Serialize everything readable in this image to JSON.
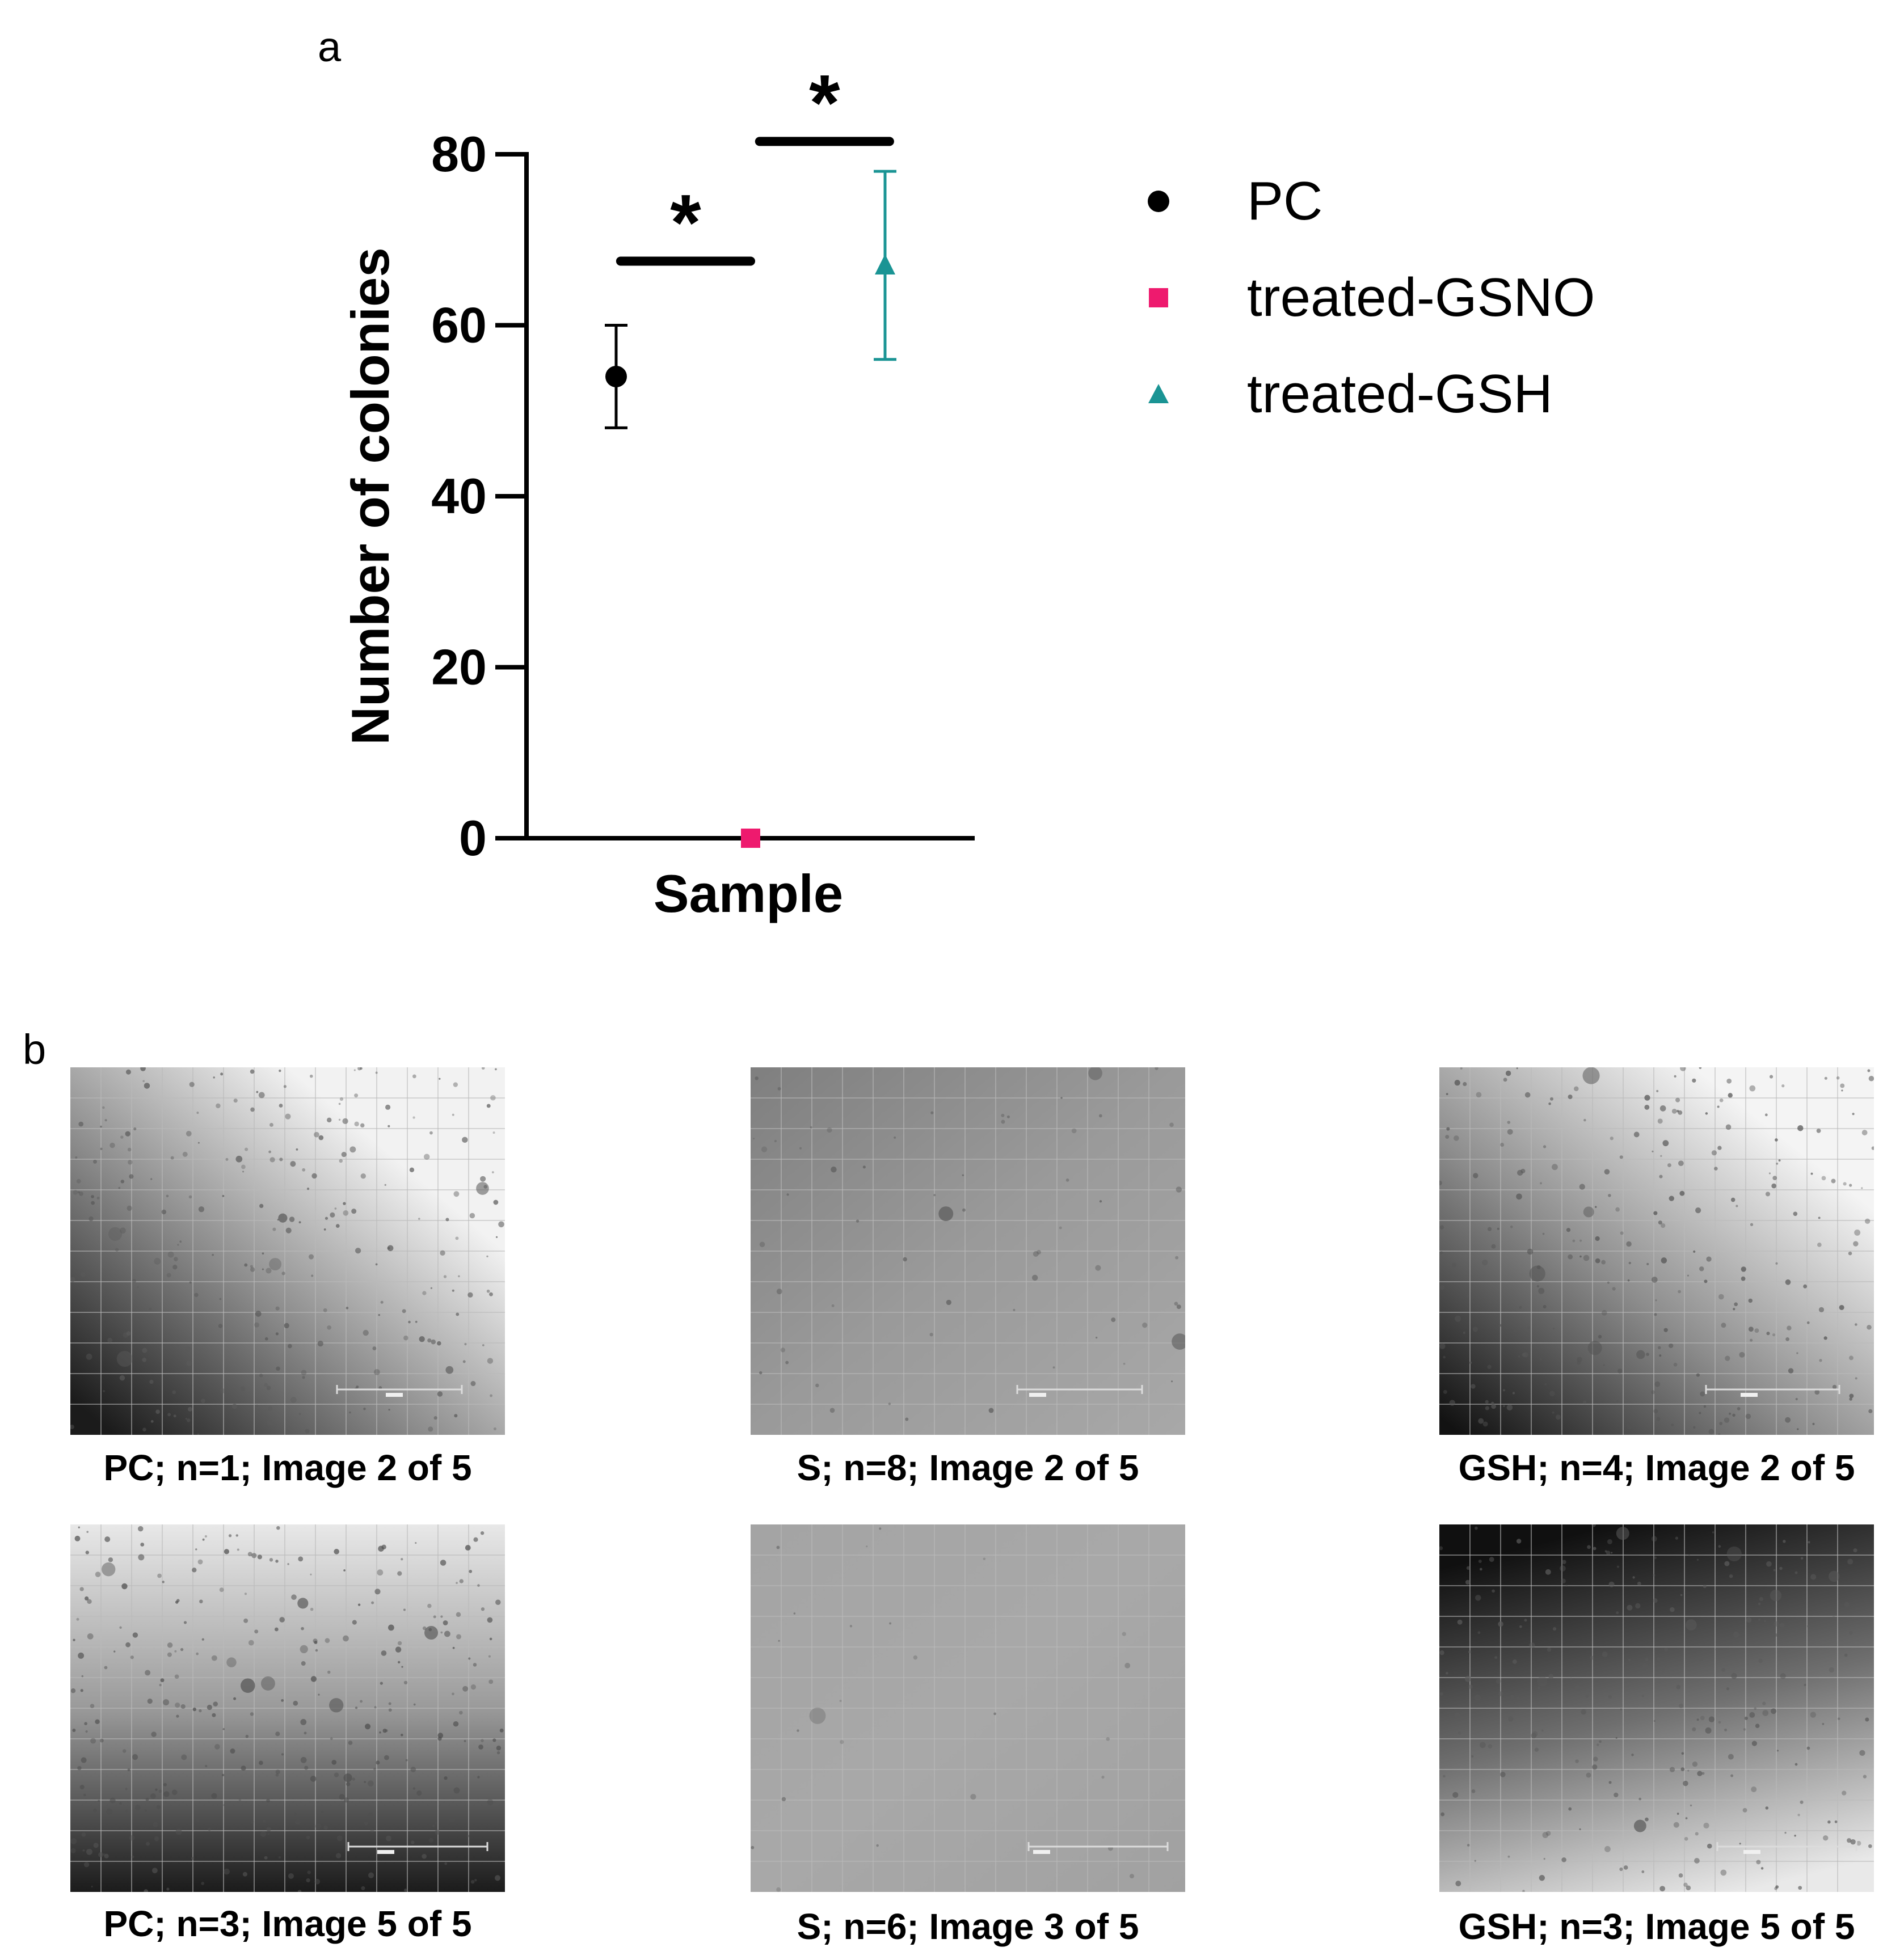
{
  "panels": {
    "a": "a",
    "b": "b"
  },
  "chart_data": {
    "type": "scatter",
    "title": "",
    "xlabel": "Sample",
    "ylabel": "Number of colonies",
    "ylim": [
      0,
      80
    ],
    "yticks": [
      "0",
      "20",
      "40",
      "60",
      "80"
    ],
    "ytick_values": [
      0,
      20,
      40,
      60,
      80
    ],
    "series": [
      {
        "name": "PC",
        "marker": "circle",
        "color": "#000000",
        "mean": 54,
        "error_low": 48,
        "error_high": 60,
        "x_position": 0.2
      },
      {
        "name": "treated-GSNO",
        "marker": "square",
        "color": "#ee1a6e",
        "mean": 0,
        "error_low": 0,
        "error_high": 0,
        "x_position": 0.5
      },
      {
        "name": "treated-GSH",
        "marker": "triangle",
        "color": "#1a9494",
        "mean": 67,
        "error_low": 56,
        "error_high": 78,
        "x_position": 0.8
      }
    ],
    "significance": [
      {
        "label": "*",
        "from": 0.21,
        "to": 0.5,
        "y": 67.5
      },
      {
        "label": "*",
        "from": 0.52,
        "to": 0.81,
        "y": 81.5
      }
    ],
    "legend_position": "right"
  },
  "images": [
    {
      "caption": "PC; n=1; Image 2 of 5",
      "style": "pc1"
    },
    {
      "caption": "S; n=8; Image 2 of 5",
      "style": "s1"
    },
    {
      "caption": "GSH; n=4; Image 2 of 5",
      "style": "gsh1"
    },
    {
      "caption": "PC; n=3; Image 5 of 5",
      "style": "pc2"
    },
    {
      "caption": "S; n=6; Image 3 of 5",
      "style": "s2"
    },
    {
      "caption": "GSH; n=3; Image 5 of 5",
      "style": "gsh2"
    }
  ],
  "colors": {
    "axis": "#000000",
    "grid_line": "#b5b5b5",
    "scale_bar": "#dcdcdc"
  }
}
